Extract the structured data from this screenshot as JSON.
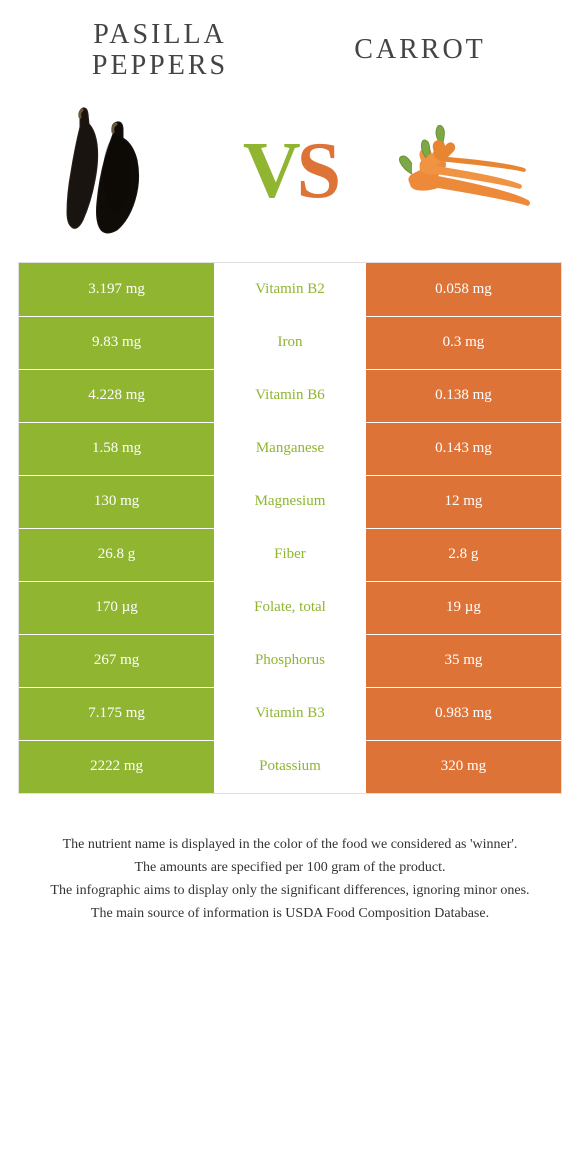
{
  "foods": {
    "left": {
      "name": "Pasilla peppers",
      "color": "#8fb531"
    },
    "right": {
      "name": "Carrot",
      "color": "#de7337"
    }
  },
  "vs": {
    "v_color": "#8fb531",
    "s_color": "#de7337",
    "text_v": "V",
    "text_s": "S"
  },
  "table": {
    "left_bg": "#8fb531",
    "right_bg": "#de7337",
    "rows": [
      {
        "left": "3.197 mg",
        "nutrient": "Vitamin B2",
        "right": "0.058 mg",
        "winner": "left"
      },
      {
        "left": "9.83 mg",
        "nutrient": "Iron",
        "right": "0.3 mg",
        "winner": "left"
      },
      {
        "left": "4.228 mg",
        "nutrient": "Vitamin B6",
        "right": "0.138 mg",
        "winner": "left"
      },
      {
        "left": "1.58 mg",
        "nutrient": "Manganese",
        "right": "0.143 mg",
        "winner": "left"
      },
      {
        "left": "130 mg",
        "nutrient": "Magnesium",
        "right": "12 mg",
        "winner": "left"
      },
      {
        "left": "26.8 g",
        "nutrient": "Fiber",
        "right": "2.8 g",
        "winner": "left"
      },
      {
        "left": "170 µg",
        "nutrient": "Folate, total",
        "right": "19 µg",
        "winner": "left"
      },
      {
        "left": "267 mg",
        "nutrient": "Phosphorus",
        "right": "35 mg",
        "winner": "left"
      },
      {
        "left": "7.175 mg",
        "nutrient": "Vitamin B3",
        "right": "0.983 mg",
        "winner": "left"
      },
      {
        "left": "2222 mg",
        "nutrient": "Potassium",
        "right": "320 mg",
        "winner": "left"
      }
    ]
  },
  "footer": {
    "line1": "The nutrient name is displayed in the color of the food we considered as 'winner'.",
    "line2": "The amounts are specified per 100 gram of the product.",
    "line3": "The infographic aims to display only the significant differences, ignoring minor ones.",
    "line4": "The main source of information is USDA Food Composition Database."
  }
}
